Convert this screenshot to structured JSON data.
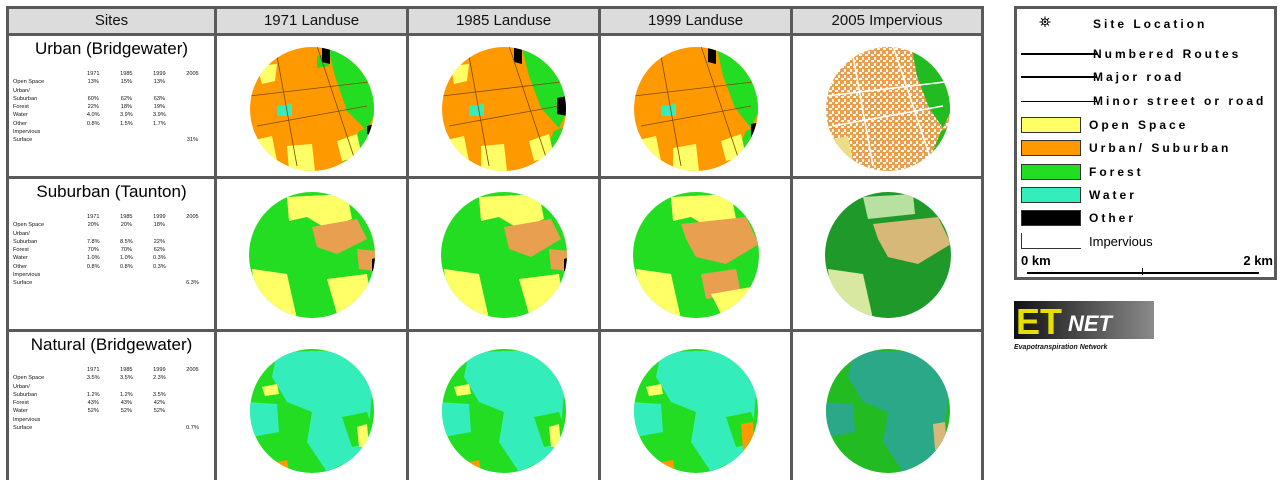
{
  "headers": {
    "sites": "Sites",
    "c1971": "1971  Landuse",
    "c1985": "1985 Landuse",
    "c1999": "1999 Landuse",
    "c2005": "2005 Impervious"
  },
  "sites": [
    {
      "title": "Urban (Bridgewater)",
      "years": [
        "1971",
        "1985",
        "1999",
        "2005"
      ],
      "rows": [
        {
          "label": "Open Space",
          "values": [
            "13%",
            "15%",
            "13%",
            ""
          ]
        },
        {
          "label": "Urban/",
          "values": [
            "",
            "",
            "",
            ""
          ]
        },
        {
          "label": "Suburban",
          "values": [
            "60%",
            "62%",
            "63%",
            ""
          ]
        },
        {
          "label": "Forest",
          "values": [
            "22%",
            "18%",
            "19%",
            ""
          ]
        },
        {
          "label": "Water",
          "values": [
            "4.0%",
            "3.9%",
            "3.9%",
            ""
          ]
        },
        {
          "label": "Other",
          "values": [
            "0.8%",
            "1.5%",
            "1.7%",
            ""
          ]
        },
        {
          "label": "Impervious",
          "values": [
            "",
            "",
            "",
            ""
          ]
        },
        {
          "label": "Surface",
          "values": [
            "",
            "",
            "",
            "31%"
          ]
        }
      ]
    },
    {
      "title": "Suburban (Taunton)",
      "years": [
        "1971",
        "1985",
        "1999",
        "2005"
      ],
      "rows": [
        {
          "label": "Open Space",
          "values": [
            "20%",
            "20%",
            "18%",
            ""
          ]
        },
        {
          "label": "Urban/",
          "values": [
            "",
            "",
            "",
            ""
          ]
        },
        {
          "label": "Suburban",
          "values": [
            "7.8%",
            "8.5%",
            "22%",
            ""
          ]
        },
        {
          "label": "Forest",
          "values": [
            "70%",
            "70%",
            "62%",
            ""
          ]
        },
        {
          "label": "Water",
          "values": [
            "1.0%",
            "1.0%",
            "0.3%",
            ""
          ]
        },
        {
          "label": "Other",
          "values": [
            "0.8%",
            "0.8%",
            "0.3%",
            ""
          ]
        },
        {
          "label": "Impervious",
          "values": [
            "",
            "",
            "",
            ""
          ]
        },
        {
          "label": "Surface",
          "values": [
            "",
            "",
            "",
            "6.3%"
          ]
        }
      ]
    },
    {
      "title": "Natural (Bridgewater)",
      "years": [
        "1971",
        "1985",
        "1999",
        "2005"
      ],
      "rows": [
        {
          "label": "Open Space",
          "values": [
            "3.5%",
            "3.5%",
            "2.3%",
            ""
          ]
        },
        {
          "label": "Urban/",
          "values": [
            "",
            "",
            "",
            ""
          ]
        },
        {
          "label": "Suburban",
          "values": [
            "1.2%",
            "1.2%",
            "3.5%",
            ""
          ]
        },
        {
          "label": "Forest",
          "values": [
            "43%",
            "43%",
            "42%",
            ""
          ]
        },
        {
          "label": "Water",
          "values": [
            "52%",
            "52%",
            "52%",
            ""
          ]
        },
        {
          "label": "",
          "values": [
            "",
            "",
            "",
            ""
          ]
        },
        {
          "label": "Impervious",
          "values": [
            "",
            "",
            "",
            ""
          ]
        },
        {
          "label": "Surface",
          "values": [
            "",
            "",
            "",
            "0.7%"
          ]
        }
      ]
    }
  ],
  "legend": {
    "site_location": "Site Location",
    "numbered_routes": "Numbered Routes",
    "major_road": "Major road",
    "minor_road": "Minor street or road",
    "open_space": "Open Space",
    "urban_suburban": "Urban/ Suburban",
    "forest": "Forest",
    "water": "Water",
    "other": "Other",
    "impervious": "Impervious",
    "scale_start": "0 km",
    "scale_end": "2 km"
  },
  "logo": {
    "text_et": "ET",
    "text_net": "NET",
    "tagline": "Evapotranspiration Network"
  },
  "colors": {
    "open_space": "#ffff66",
    "urban": "#ff9900",
    "forest": "#22dd22",
    "water": "#33eebb",
    "other": "#000000",
    "impervious": "#ffffff",
    "grid": "#5a5a5a",
    "header_bg": "#dcdcdc"
  }
}
